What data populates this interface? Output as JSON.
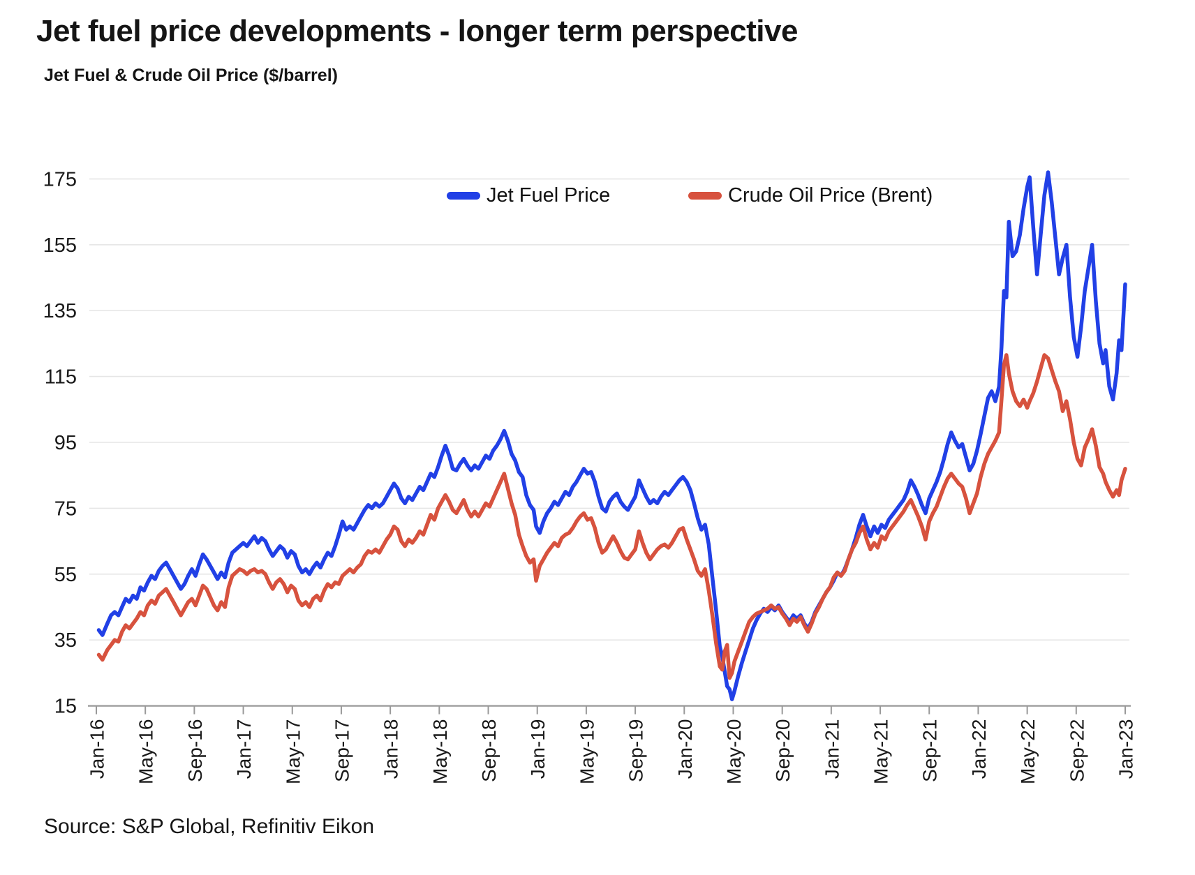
{
  "title": "Jet fuel price developments - longer term perspective",
  "subtitle": "Jet Fuel & Crude Oil Price ($/barrel)",
  "source": "Source: S&P Global, Refinitiv Eikon",
  "colors": {
    "jet_fuel": "#2140e6",
    "brent": "#d7523e",
    "grid": "#e6e6e6",
    "axis": "#999999",
    "text": "#1a1a1a"
  },
  "chart_data": {
    "type": "line",
    "title": "Jet Fuel & Crude Oil Price ($/barrel)",
    "xlabel": "",
    "ylabel": "$/barrel",
    "ylim": [
      15,
      175
    ],
    "yticks": [
      15,
      35,
      55,
      75,
      95,
      115,
      135,
      155,
      175
    ],
    "grid": "horizontal",
    "legend_position": "top-inside",
    "x_unit": "months_since_Jan_2016",
    "x_tick_interval_months": 4,
    "x_tick_labels": [
      "Jan-16",
      "May-16",
      "Sep-16",
      "Jan-17",
      "May-17",
      "Sep-17",
      "Jan-18",
      "May-18",
      "Sep-18",
      "Jan-19",
      "May-19",
      "Sep-19",
      "Jan-20",
      "May-20",
      "Sep-20",
      "Jan-21",
      "May-21",
      "Sep-21",
      "Jan-22",
      "May-22",
      "Sep-22",
      "Jan-23"
    ],
    "series": [
      {
        "name": "Jet Fuel Price",
        "color": "#2140e6"
      },
      {
        "name": "Crude Oil Price (Brent)",
        "color": "#d7523e"
      }
    ],
    "points_format": [
      "t_months",
      "jet_fuel_price",
      "brent_price"
    ],
    "points": [
      [
        0.2,
        38,
        30.5
      ],
      [
        0.5,
        36.5,
        29
      ],
      [
        0.9,
        40,
        32
      ],
      [
        1.2,
        42.5,
        33.5
      ],
      [
        1.5,
        43.5,
        35
      ],
      [
        1.8,
        42.5,
        34.5
      ],
      [
        2.1,
        45,
        37.5
      ],
      [
        2.4,
        47.5,
        39.5
      ],
      [
        2.7,
        46.5,
        38.5
      ],
      [
        3,
        48.5,
        40
      ],
      [
        3.3,
        47.5,
        41.5
      ],
      [
        3.6,
        51,
        43.5
      ],
      [
        3.9,
        50,
        42.5
      ],
      [
        4.2,
        52.5,
        45.5
      ],
      [
        4.5,
        54.5,
        47
      ],
      [
        4.8,
        53.5,
        46
      ],
      [
        5.1,
        56,
        48.5
      ],
      [
        5.4,
        57.5,
        49.5
      ],
      [
        5.7,
        58.5,
        50.5
      ],
      [
        6,
        56.5,
        48.5
      ],
      [
        6.3,
        54.5,
        46.5
      ],
      [
        6.6,
        52.5,
        44.5
      ],
      [
        6.9,
        50.5,
        42.5
      ],
      [
        7.2,
        52,
        44.5
      ],
      [
        7.5,
        54.5,
        46.5
      ],
      [
        7.8,
        56.5,
        47.5
      ],
      [
        8.1,
        54.5,
        45.5
      ],
      [
        8.4,
        58,
        48.5
      ],
      [
        8.7,
        61,
        51.5
      ],
      [
        9,
        59.5,
        50.5
      ],
      [
        9.3,
        57.5,
        48
      ],
      [
        9.6,
        55.5,
        45.5
      ],
      [
        9.9,
        53.5,
        44
      ],
      [
        10.2,
        55.5,
        46.5
      ],
      [
        10.5,
        54,
        45
      ],
      [
        10.8,
        58.5,
        51
      ],
      [
        11.1,
        61.5,
        54.5
      ],
      [
        11.4,
        62.5,
        55.5
      ],
      [
        11.7,
        63.5,
        56.5
      ],
      [
        12,
        64.5,
        56
      ],
      [
        12.3,
        63.5,
        55
      ],
      [
        12.6,
        65,
        56
      ],
      [
        12.9,
        66.5,
        56.5
      ],
      [
        13.2,
        64.5,
        55.5
      ],
      [
        13.5,
        66,
        56
      ],
      [
        13.8,
        65,
        55
      ],
      [
        14.1,
        62.5,
        52.5
      ],
      [
        14.4,
        60.5,
        50.5
      ],
      [
        14.7,
        62,
        52.5
      ],
      [
        15,
        63.5,
        53.5
      ],
      [
        15.3,
        62.5,
        52
      ],
      [
        15.6,
        60,
        49.5
      ],
      [
        15.9,
        62,
        51.5
      ],
      [
        16.2,
        61,
        50.5
      ],
      [
        16.5,
        57.5,
        47
      ],
      [
        16.8,
        55.5,
        45.5
      ],
      [
        17.1,
        56.5,
        46.5
      ],
      [
        17.4,
        55,
        45
      ],
      [
        17.7,
        57,
        47.5
      ],
      [
        18,
        58.5,
        48.5
      ],
      [
        18.3,
        57,
        47
      ],
      [
        18.6,
        59.5,
        50
      ],
      [
        18.9,
        61.5,
        52
      ],
      [
        19.2,
        60.5,
        51
      ],
      [
        19.5,
        63.5,
        52.5
      ],
      [
        19.8,
        67,
        52
      ],
      [
        20.1,
        71,
        54.5
      ],
      [
        20.4,
        68.5,
        55.5
      ],
      [
        20.7,
        69.5,
        56.5
      ],
      [
        21,
        68.5,
        55.5
      ],
      [
        21.3,
        70.5,
        57
      ],
      [
        21.6,
        72.5,
        58
      ],
      [
        21.9,
        74.5,
        60.5
      ],
      [
        22.2,
        76,
        62
      ],
      [
        22.5,
        75,
        61.5
      ],
      [
        22.8,
        76.5,
        62.5
      ],
      [
        23.1,
        75.5,
        61.5
      ],
      [
        23.4,
        76.5,
        63.5
      ],
      [
        23.7,
        78.5,
        65.5
      ],
      [
        24,
        80.5,
        67
      ],
      [
        24.3,
        82.5,
        69.5
      ],
      [
        24.6,
        81,
        68.5
      ],
      [
        24.9,
        78,
        65
      ],
      [
        25.2,
        76.5,
        63.5
      ],
      [
        25.5,
        78.5,
        65.5
      ],
      [
        25.8,
        77.5,
        64.5
      ],
      [
        26.1,
        79.5,
        66
      ],
      [
        26.4,
        81.5,
        68
      ],
      [
        26.7,
        80.5,
        67
      ],
      [
        27,
        83,
        70
      ],
      [
        27.3,
        85.5,
        73
      ],
      [
        27.6,
        84.5,
        71.5
      ],
      [
        27.9,
        87.5,
        75
      ],
      [
        28.2,
        91,
        77
      ],
      [
        28.5,
        94,
        79
      ],
      [
        28.8,
        91,
        77
      ],
      [
        29.1,
        87,
        74.5
      ],
      [
        29.4,
        86.5,
        73.5
      ],
      [
        29.7,
        88.5,
        75.5
      ],
      [
        30,
        90,
        77.5
      ],
      [
        30.3,
        88,
        74.5
      ],
      [
        30.6,
        86.5,
        72.5
      ],
      [
        30.9,
        88,
        74
      ],
      [
        31.2,
        87,
        72.5
      ],
      [
        31.5,
        89,
        74.5
      ],
      [
        31.8,
        91,
        76.5
      ],
      [
        32.1,
        90,
        75.5
      ],
      [
        32.4,
        92.5,
        78
      ],
      [
        32.7,
        94,
        80.5
      ],
      [
        33,
        96,
        83
      ],
      [
        33.3,
        98.5,
        85.5
      ],
      [
        33.6,
        95.5,
        81
      ],
      [
        33.9,
        91.5,
        76.5
      ],
      [
        34.2,
        89.5,
        73
      ],
      [
        34.5,
        86,
        67
      ],
      [
        34.8,
        84.5,
        63.5
      ],
      [
        35.1,
        79,
        60.5
      ],
      [
        35.4,
        76,
        58.5
      ],
      [
        35.7,
        74.5,
        59.5
      ],
      [
        35.9,
        69.5,
        53
      ],
      [
        36.2,
        67.5,
        57.5
      ],
      [
        36.5,
        71,
        59.5
      ],
      [
        36.8,
        73.5,
        61.5
      ],
      [
        37.1,
        75,
        63
      ],
      [
        37.4,
        77,
        64.5
      ],
      [
        37.7,
        76,
        63.5
      ],
      [
        38,
        78,
        66
      ],
      [
        38.3,
        80,
        67
      ],
      [
        38.6,
        79,
        67.5
      ],
      [
        38.9,
        81.5,
        69
      ],
      [
        39.2,
        83,
        71
      ],
      [
        39.5,
        85,
        72.5
      ],
      [
        39.8,
        87,
        73.5
      ],
      [
        40.1,
        85.5,
        71.5
      ],
      [
        40.4,
        86,
        72
      ],
      [
        40.7,
        83,
        69
      ],
      [
        41,
        78.5,
        64.5
      ],
      [
        41.3,
        75,
        61.5
      ],
      [
        41.6,
        74,
        62.5
      ],
      [
        41.9,
        77,
        64.5
      ],
      [
        42.2,
        78.5,
        66.5
      ],
      [
        42.5,
        79.5,
        64.5
      ],
      [
        42.8,
        77,
        62
      ],
      [
        43.1,
        75.5,
        60
      ],
      [
        43.4,
        74.5,
        59.5
      ],
      [
        43.7,
        76.5,
        61
      ],
      [
        44,
        78.5,
        62.5
      ],
      [
        44.3,
        83.5,
        68
      ],
      [
        44.6,
        81,
        64.5
      ],
      [
        44.9,
        78.5,
        61.5
      ],
      [
        45.2,
        76.5,
        59.5
      ],
      [
        45.5,
        77.5,
        61
      ],
      [
        45.8,
        76.5,
        62.5
      ],
      [
        46.1,
        78.5,
        63.5
      ],
      [
        46.4,
        80,
        64
      ],
      [
        46.7,
        79,
        63
      ],
      [
        47,
        80.5,
        64.5
      ],
      [
        47.3,
        82,
        66.5
      ],
      [
        47.6,
        83.5,
        68.5
      ],
      [
        47.9,
        84.5,
        69
      ],
      [
        48.2,
        83,
        65.5
      ],
      [
        48.5,
        80.5,
        62.5
      ],
      [
        48.8,
        76.5,
        59.5
      ],
      [
        49.1,
        72,
        56
      ],
      [
        49.4,
        68.5,
        54.5
      ],
      [
        49.7,
        70,
        56.5
      ],
      [
        50,
        64,
        50
      ],
      [
        50.3,
        54,
        42.5
      ],
      [
        50.6,
        44,
        34
      ],
      [
        50.9,
        33,
        27
      ],
      [
        51.1,
        30,
        26
      ],
      [
        51.3,
        25.5,
        31.5
      ],
      [
        51.5,
        21,
        33.5
      ],
      [
        51.7,
        20,
        23.5
      ],
      [
        51.9,
        17,
        25
      ],
      [
        52.1,
        19.5,
        28.5
      ],
      [
        52.4,
        24,
        31.5
      ],
      [
        52.7,
        28,
        34.5
      ],
      [
        53,
        31.5,
        37.5
      ],
      [
        53.3,
        35,
        40.5
      ],
      [
        53.6,
        38.5,
        42
      ],
      [
        53.9,
        41,
        43
      ],
      [
        54.2,
        43,
        43.5
      ],
      [
        54.5,
        44.5,
        44
      ],
      [
        54.8,
        43.5,
        44.5
      ],
      [
        55.1,
        45,
        45.5
      ],
      [
        55.4,
        44,
        44.5
      ],
      [
        55.7,
        45.5,
        45
      ],
      [
        56,
        43.5,
        43
      ],
      [
        56.3,
        42,
        41.5
      ],
      [
        56.6,
        40.5,
        39.5
      ],
      [
        56.9,
        42.5,
        41.5
      ],
      [
        57.2,
        41.5,
        40.5
      ],
      [
        57.5,
        42.5,
        42
      ],
      [
        57.8,
        40,
        39.5
      ],
      [
        58.1,
        38.5,
        37.5
      ],
      [
        58.4,
        40.5,
        40
      ],
      [
        58.7,
        43.5,
        43
      ],
      [
        59,
        45.5,
        45
      ],
      [
        59.3,
        47.5,
        47.5
      ],
      [
        59.6,
        49.5,
        49.5
      ],
      [
        59.9,
        51,
        51
      ],
      [
        60.2,
        53,
        54
      ],
      [
        60.5,
        55.5,
        55.5
      ],
      [
        60.8,
        54.5,
        54.5
      ],
      [
        61.1,
        56.5,
        56
      ],
      [
        61.4,
        59.5,
        59.5
      ],
      [
        61.7,
        62.5,
        62.5
      ],
      [
        62,
        66,
        64.5
      ],
      [
        62.3,
        70,
        67.5
      ],
      [
        62.6,
        73,
        69.5
      ],
      [
        62.9,
        69.5,
        65.5
      ],
      [
        63.2,
        66.5,
        62.5
      ],
      [
        63.5,
        69.5,
        64.5
      ],
      [
        63.8,
        67.5,
        63
      ],
      [
        64.1,
        70,
        66.5
      ],
      [
        64.4,
        69,
        65.5
      ],
      [
        64.7,
        71.5,
        68
      ],
      [
        65,
        73,
        69.5
      ],
      [
        65.3,
        74.5,
        71
      ],
      [
        65.6,
        76,
        72.5
      ],
      [
        65.9,
        77.5,
        74
      ],
      [
        66.2,
        80,
        76
      ],
      [
        66.5,
        83.5,
        77.5
      ],
      [
        66.8,
        81.5,
        75
      ],
      [
        67.1,
        79,
        72.5
      ],
      [
        67.4,
        76,
        69.5
      ],
      [
        67.7,
        73.5,
        65.5
      ],
      [
        68,
        78,
        71
      ],
      [
        68.3,
        80.5,
        73.5
      ],
      [
        68.6,
        83,
        75.5
      ],
      [
        68.9,
        86,
        78.5
      ],
      [
        69.2,
        90,
        81.5
      ],
      [
        69.5,
        94.5,
        84
      ],
      [
        69.8,
        98,
        85.5
      ],
      [
        70.1,
        95.5,
        84
      ],
      [
        70.4,
        93.5,
        82.5
      ],
      [
        70.7,
        94.5,
        81.5
      ],
      [
        71,
        90.5,
        78
      ],
      [
        71.3,
        86.5,
        73.5
      ],
      [
        71.6,
        88.5,
        76.5
      ],
      [
        71.9,
        92.5,
        79.5
      ],
      [
        72.2,
        97.5,
        84.5
      ],
      [
        72.5,
        103,
        88.5
      ],
      [
        72.8,
        108.5,
        91.5
      ],
      [
        73.1,
        110.5,
        93.5
      ],
      [
        73.4,
        107.5,
        95.5
      ],
      [
        73.7,
        112,
        98
      ],
      [
        73.9,
        124,
        108
      ],
      [
        74.1,
        141,
        118.5
      ],
      [
        74.3,
        139,
        121.5
      ],
      [
        74.5,
        162,
        116
      ],
      [
        74.8,
        151.5,
        110.5
      ],
      [
        75.1,
        153,
        107.5
      ],
      [
        75.4,
        158,
        106
      ],
      [
        75.7,
        166,
        108
      ],
      [
        76,
        172.5,
        105.5
      ],
      [
        76.2,
        175.5,
        107.5
      ],
      [
        76.5,
        160,
        110
      ],
      [
        76.8,
        146,
        113.5
      ],
      [
        77.1,
        158,
        117.5
      ],
      [
        77.4,
        170,
        121.5
      ],
      [
        77.7,
        177,
        120.5
      ],
      [
        78,
        168,
        117
      ],
      [
        78.3,
        157,
        113.5
      ],
      [
        78.6,
        146,
        110.5
      ],
      [
        78.9,
        151,
        104.5
      ],
      [
        79.2,
        155,
        107.5
      ],
      [
        79.5,
        139,
        102
      ],
      [
        79.8,
        127,
        95
      ],
      [
        80.1,
        121,
        90
      ],
      [
        80.4,
        130,
        88
      ],
      [
        80.7,
        141,
        93.5
      ],
      [
        81,
        148,
        96
      ],
      [
        81.3,
        155,
        99
      ],
      [
        81.6,
        138,
        94
      ],
      [
        81.9,
        125,
        87.5
      ],
      [
        82.2,
        119,
        85.5
      ],
      [
        82.4,
        123,
        83
      ],
      [
        82.7,
        112,
        80.5
      ],
      [
        83,
        108,
        78.5
      ],
      [
        83.3,
        116,
        80.5
      ],
      [
        83.5,
        126,
        79
      ],
      [
        83.7,
        123,
        83.5
      ],
      [
        84,
        143,
        87
      ]
    ]
  }
}
